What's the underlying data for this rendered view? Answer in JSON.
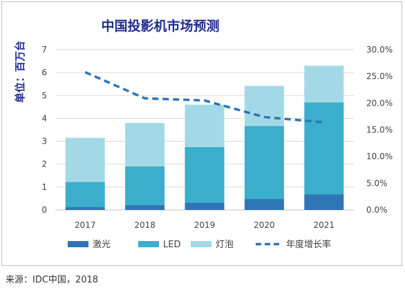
{
  "chart_data": {
    "type": "bar",
    "stacked": true,
    "title": "中国投影机市场预测",
    "ylabel": "单位：百万台",
    "categories": [
      "2017",
      "2018",
      "2019",
      "2020",
      "2021"
    ],
    "ylim": [
      0,
      7
    ],
    "y_ticks": [
      "0",
      "1",
      "2",
      "3",
      "4",
      "5",
      "6",
      "7"
    ],
    "y2lim": [
      0,
      30
    ],
    "y2_ticks": [
      "0.0%",
      "5.0%",
      "10.0%",
      "15.0%",
      "20.0%",
      "25.0%",
      "30.0%"
    ],
    "series": [
      {
        "name": "激光",
        "values": [
          0.12,
          0.22,
          0.32,
          0.48,
          0.68
        ],
        "color": "#2e75b6"
      },
      {
        "name": "LED",
        "values": [
          1.1,
          1.68,
          2.43,
          3.19,
          4.02
        ],
        "color": "#3aaecb"
      },
      {
        "name": "灯泡",
        "values": [
          1.93,
          1.9,
          1.85,
          1.75,
          1.6
        ],
        "color": "#a3d9e6"
      }
    ],
    "line_series": {
      "name": "年度增长率",
      "values": [
        25.8,
        20.9,
        20.5,
        17.4,
        16.4
      ],
      "color": "#2e75b6",
      "axis": "right"
    },
    "grid": true,
    "legend": "bottom"
  },
  "source": "来源：IDC中国，2018"
}
